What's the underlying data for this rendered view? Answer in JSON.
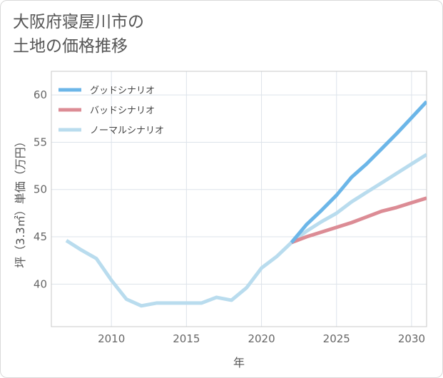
{
  "title": {
    "line1": "大阪府寝屋川市の",
    "line2": "土地の価格推移"
  },
  "chart_data": {
    "type": "line",
    "xlabel": "年",
    "ylabel": "坪（3.3㎡）単価（万円）",
    "xlim": [
      2006,
      2031
    ],
    "ylim": [
      35.5,
      62.5
    ],
    "x_ticks": [
      2010,
      2015,
      2020,
      2025,
      2030
    ],
    "y_ticks": [
      40,
      45,
      50,
      55,
      60
    ],
    "grid": true,
    "legend_position": "top-left",
    "series": [
      {
        "name": "グッドシナリオ",
        "color": "#6cb6e8",
        "x": [
          2022,
          2023,
          2024,
          2025,
          2026,
          2027,
          2028,
          2029,
          2030,
          2031
        ],
        "y": [
          44.4,
          46.3,
          47.8,
          49.4,
          51.3,
          52.7,
          54.3,
          55.9,
          57.6,
          59.3
        ]
      },
      {
        "name": "バッドシナリオ",
        "color": "#dc8c95",
        "x": [
          2022,
          2023,
          2024,
          2025,
          2026,
          2027,
          2028,
          2029,
          2030,
          2031
        ],
        "y": [
          44.4,
          45.0,
          45.5,
          46.0,
          46.5,
          47.1,
          47.7,
          48.1,
          48.6,
          49.1
        ]
      },
      {
        "name": "ノーマルシナリオ",
        "color": "#b9dcee",
        "x": [
          2007,
          2008,
          2009,
          2010,
          2011,
          2012,
          2013,
          2014,
          2015,
          2016,
          2017,
          2018,
          2019,
          2020,
          2021,
          2022,
          2023,
          2024,
          2025,
          2026,
          2027,
          2028,
          2029,
          2030,
          2031
        ],
        "y": [
          44.6,
          43.6,
          42.7,
          40.4,
          38.4,
          37.7,
          38.0,
          38.0,
          38.0,
          38.0,
          38.6,
          38.3,
          39.6,
          41.7,
          42.9,
          44.4,
          45.6,
          46.6,
          47.5,
          48.7,
          49.7,
          50.7,
          51.7,
          52.7,
          53.7
        ]
      }
    ]
  }
}
